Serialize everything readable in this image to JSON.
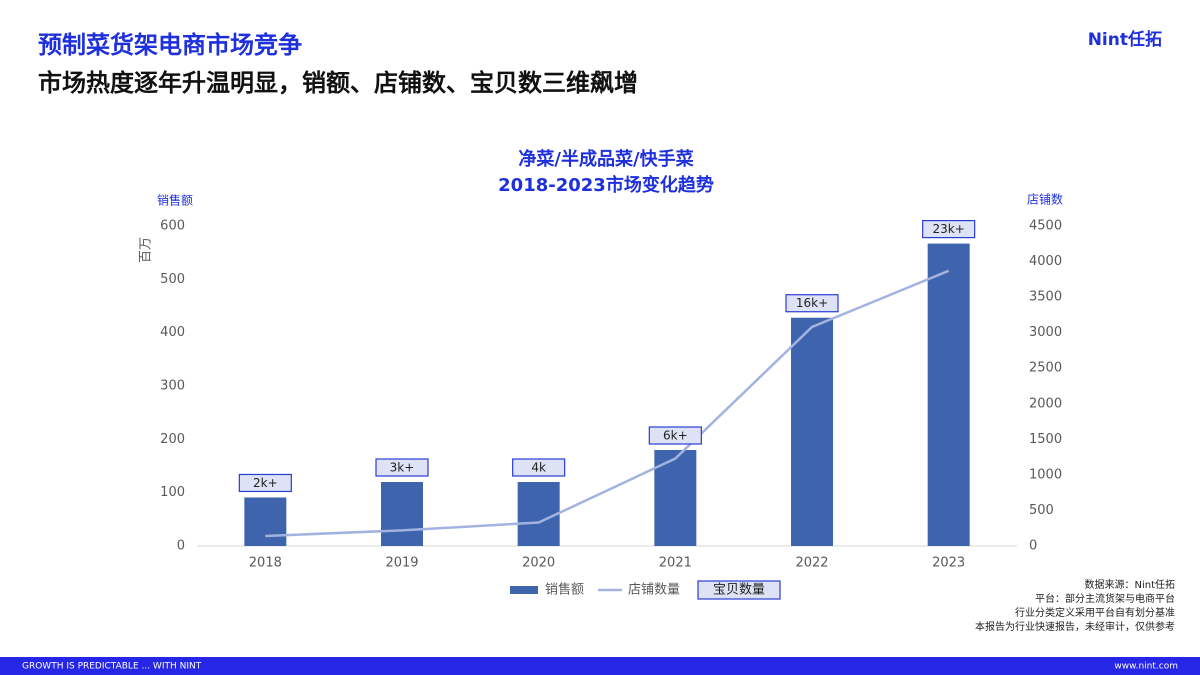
{
  "header": {
    "title": "预制菜货架电商市场竞争",
    "subtitle": "市场热度逐年升温明显，销额、店铺数、宝贝数三维飙增",
    "logo": "Nint任拓"
  },
  "chart_data": {
    "type": "combo",
    "title": "净菜/半成品菜/快手菜",
    "subtitle": "2018-2023市场变化趋势",
    "y_label": "销售额",
    "y_unit": "百万",
    "y2_label": "店铺数",
    "categories": [
      "2018",
      "2019",
      "2020",
      "2021",
      "2022",
      "2023"
    ],
    "series": [
      {
        "name": "销售额",
        "type": "bar",
        "color": "#3e64ad",
        "values": [
          91,
          120,
          120,
          180,
          428,
          567
        ]
      },
      {
        "name": "店铺数量",
        "type": "line",
        "axis": "y2",
        "color": "#a3b3e0",
        "values": [
          140,
          220,
          330,
          1230,
          3080,
          3870
        ]
      },
      {
        "name": "宝贝数量",
        "type": "label",
        "color": "#dde3f5",
        "value_labels": [
          "2k+",
          "3k+",
          "4k",
          "6k+",
          "16k+",
          "23k+"
        ]
      }
    ],
    "ylim": [
      0,
      600
    ],
    "yticks": [
      0,
      100,
      200,
      300,
      400,
      500,
      600
    ],
    "y2lim": [
      0,
      4500
    ],
    "y2ticks": [
      0,
      500,
      1000,
      1500,
      2000,
      2500,
      3000,
      3500,
      4000,
      4500
    ]
  },
  "notes": [
    "数据来源：Nint任拓",
    "平台：部分主流货架与电商平台",
    "行业分类定义采用平台自有划分基准",
    "本报告为行业快速报告，未经审计，仅供参考"
  ],
  "footer": {
    "left": "GROWTH IS PREDICTABLE ... WITH NINT",
    "right": "www.nint.com"
  }
}
